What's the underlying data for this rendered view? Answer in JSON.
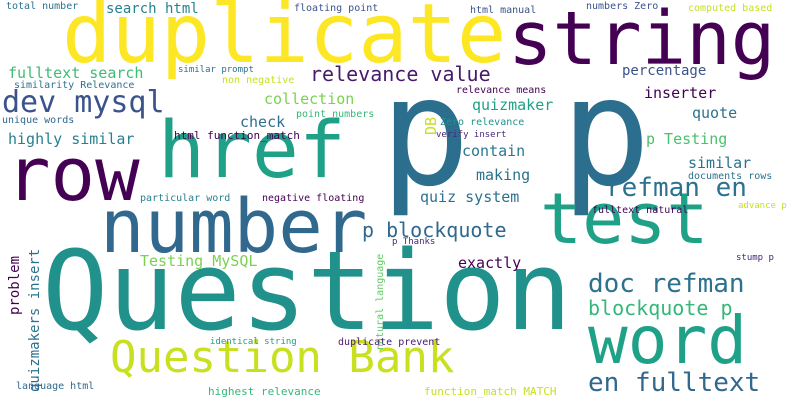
{
  "words": [
    {
      "text": "p p",
      "color": "#2c6e8e"
    },
    {
      "text": "Question",
      "color": "#21918c"
    },
    {
      "text": "duplicate",
      "color": "#fde725"
    },
    {
      "text": "string",
      "color": "#440154"
    },
    {
      "text": "row",
      "color": "#440154"
    },
    {
      "text": "href",
      "color": "#1fa187"
    },
    {
      "text": "number",
      "color": "#31688e"
    },
    {
      "text": "test",
      "color": "#1fa187"
    },
    {
      "text": "word",
      "color": "#1fa187"
    },
    {
      "text": "Question Bank",
      "color": "#c8e020"
    },
    {
      "text": "dev mysql",
      "color": "#3b528b"
    },
    {
      "text": "refman en",
      "color": "#2c728e"
    },
    {
      "text": "doc refman",
      "color": "#2c728e"
    },
    {
      "text": "en fulltext",
      "color": "#31688e"
    },
    {
      "text": "relevance value",
      "color": "#481a6c"
    },
    {
      "text": "p blockquote",
      "color": "#31688e"
    },
    {
      "text": "blockquote p",
      "color": "#35b779"
    },
    {
      "text": "fulltext search",
      "color": "#3dbc74"
    },
    {
      "text": "collection",
      "color": "#7ad151"
    },
    {
      "text": "check",
      "color": "#2d708e"
    },
    {
      "text": "contain",
      "color": "#2a788e"
    },
    {
      "text": "making",
      "color": "#2c728e"
    },
    {
      "text": "quiz system",
      "color": "#2c728e"
    },
    {
      "text": "exactly",
      "color": "#440154"
    },
    {
      "text": "similar",
      "color": "#2c728e"
    },
    {
      "text": "quote",
      "color": "#2c728e"
    },
    {
      "text": "inserter",
      "color": "#440154"
    },
    {
      "text": "percentage",
      "color": "#3b528b"
    },
    {
      "text": "quizmaker",
      "color": "#1fa187"
    },
    {
      "text": "p Testing",
      "color": "#4ac16d"
    },
    {
      "text": "highly similar",
      "color": "#27808e"
    },
    {
      "text": "Testing MySQL",
      "color": "#7ad151"
    },
    {
      "text": "search html",
      "color": "#26828e"
    },
    {
      "text": "problem",
      "color": "#440154"
    },
    {
      "text": "quizmakers insert",
      "color": "#2c728e"
    },
    {
      "text": "natural language",
      "color": "#5ec962"
    },
    {
      "text": "DB",
      "color": "#c8e020"
    },
    {
      "text": "total number",
      "color": "#2c728e"
    },
    {
      "text": "floating point",
      "color": "#3b528b"
    },
    {
      "text": "html manual",
      "color": "#3b528b"
    },
    {
      "text": "numbers Zero",
      "color": "#3b528b"
    },
    {
      "text": "computed based",
      "color": "#c8e020"
    },
    {
      "text": "similar prompt",
      "color": "#2c728e"
    },
    {
      "text": "similarity Relevance",
      "color": "#2c728e"
    },
    {
      "text": "non negative",
      "color": "#c8e020"
    },
    {
      "text": "unique words",
      "color": "#31688e"
    },
    {
      "text": "relevance means",
      "color": "#440154"
    },
    {
      "text": "point numbers",
      "color": "#35b779"
    },
    {
      "text": "Zero relevance",
      "color": "#21918c"
    },
    {
      "text": "html function_match",
      "color": "#440154"
    },
    {
      "text": "verify insert",
      "color": "#482878"
    },
    {
      "text": "particular word",
      "color": "#27808e"
    },
    {
      "text": "negative floating",
      "color": "#440154"
    },
    {
      "text": "documents rows",
      "color": "#2c728e"
    },
    {
      "text": "fulltext natural",
      "color": "#440154"
    },
    {
      "text": "advance p",
      "color": "#c8e020"
    },
    {
      "text": "p Thanks",
      "color": "#482878"
    },
    {
      "text": "stump p",
      "color": "#482878"
    },
    {
      "text": "identical string",
      "color": "#1fa187"
    },
    {
      "text": "duplicate prevent",
      "color": "#481a6c"
    },
    {
      "text": "language html",
      "color": "#31688e"
    },
    {
      "text": "highest relevance",
      "color": "#35b779"
    },
    {
      "text": "function_match MATCH",
      "color": "#c8e020"
    }
  ]
}
